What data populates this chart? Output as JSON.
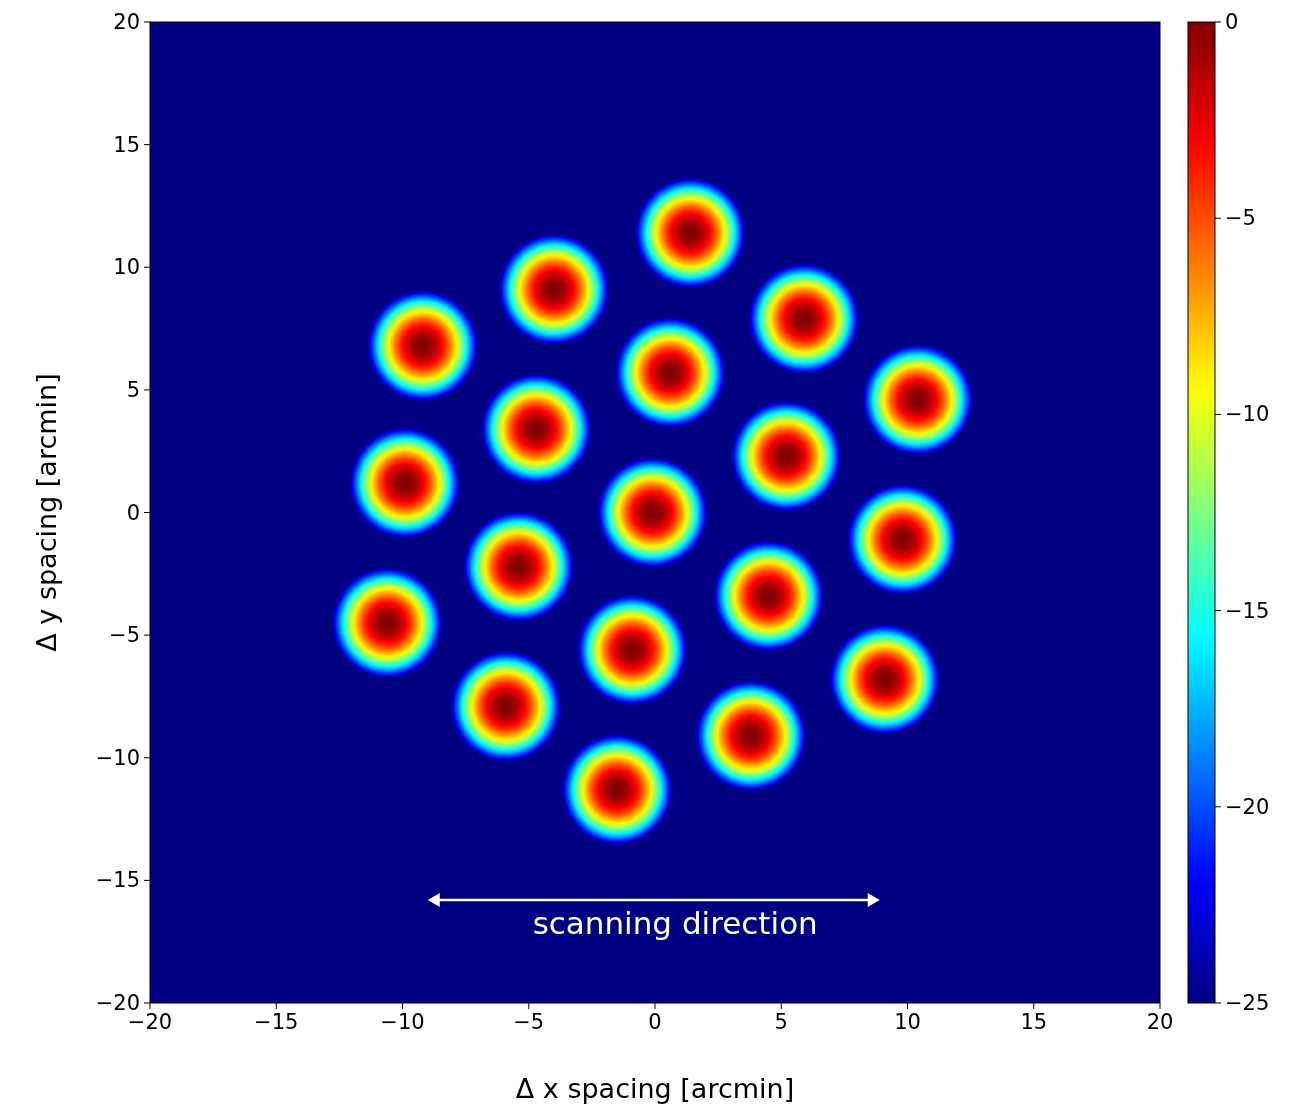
{
  "chart_data": {
    "type": "scatter",
    "xlabel": "Δ x spacing [arcmin]",
    "ylabel": "Δ y spacing [arcmin]",
    "x": [
      1.4,
      -4.0,
      5.9,
      -9.2,
      0.6,
      10.4,
      -4.7,
      5.2,
      -9.9,
      -0.1,
      9.8,
      -5.4,
      4.5,
      -10.6,
      -0.9,
      9.1,
      -5.9,
      3.8,
      -1.5
    ],
    "values": [
      11.4,
      9.1,
      7.9,
      6.8,
      5.7,
      4.6,
      3.4,
      2.3,
      1.2,
      0.0,
      -1.1,
      -2.2,
      -3.4,
      -4.5,
      -5.6,
      -6.8,
      -7.9,
      -9.1,
      -11.3
    ],
    "marker": "circle",
    "xlim": [
      -20,
      20
    ],
    "xticks": [
      -20,
      -15,
      -10,
      -5,
      0,
      5,
      10,
      15,
      20
    ],
    "ylim": [
      -20,
      20
    ],
    "yticks": [
      -20,
      -15,
      -10,
      -5,
      0,
      5,
      10,
      15,
      20
    ],
    "clim": [
      -25,
      0
    ],
    "cticks": [
      0,
      -5,
      -10,
      -15,
      -20,
      -25
    ],
    "annotations": [
      "scanning direction"
    ]
  }
}
